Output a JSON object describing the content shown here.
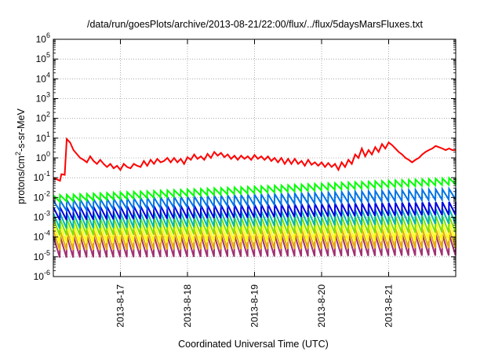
{
  "chart_data": {
    "type": "line",
    "title": "/data/run/goesPlots/archive/2013-08-21/22:00/flux/../flux/5daysMarsFluxes.txt",
    "xlabel": "Coordinated Universal Time (UTC)",
    "ylabel_parts": {
      "a": "protons/cm",
      "sup": "2",
      "b": "-s-sr-MeV"
    },
    "y_scale": "log",
    "ylim_exp": [
      -6,
      6
    ],
    "y_tick_exps": [
      -6,
      -5,
      -4,
      -3,
      -2,
      -1,
      0,
      1,
      2,
      3,
      4,
      5,
      6
    ],
    "y_tick_base": "10",
    "xlim_days": [
      0,
      6
    ],
    "x_ticks": [
      {
        "day": 1,
        "label": "2013-8-17"
      },
      {
        "day": 2,
        "label": "2013-8-18"
      },
      {
        "day": 3,
        "label": "2013-8-19"
      },
      {
        "day": 4,
        "label": "2013-8-20"
      },
      {
        "day": 5,
        "label": "2013-8-21"
      }
    ],
    "grid": true,
    "red_series": {
      "name": "",
      "color": "#ff0000",
      "x": [
        0.0,
        0.1,
        0.12,
        0.17,
        0.2,
        0.25,
        0.3,
        0.4,
        0.45,
        0.5,
        0.55,
        0.6,
        0.65,
        0.7,
        0.75,
        0.8,
        0.85,
        0.9,
        0.95,
        1.0,
        1.05,
        1.1,
        1.15,
        1.2,
        1.25,
        1.3,
        1.35,
        1.4,
        1.45,
        1.5,
        1.55,
        1.6,
        1.65,
        1.7,
        1.75,
        1.8,
        1.85,
        1.9,
        1.95,
        2.0,
        2.05,
        2.1,
        2.15,
        2.2,
        2.25,
        2.3,
        2.35,
        2.4,
        2.45,
        2.5,
        2.55,
        2.6,
        2.65,
        2.7,
        2.75,
        2.8,
        2.85,
        2.9,
        2.95,
        3.0,
        3.05,
        3.1,
        3.15,
        3.2,
        3.25,
        3.3,
        3.35,
        3.4,
        3.45,
        3.5,
        3.55,
        3.6,
        3.65,
        3.7,
        3.75,
        3.8,
        3.85,
        3.9,
        3.95,
        4.0,
        4.05,
        4.1,
        4.15,
        4.2,
        4.25,
        4.3,
        4.35,
        4.4,
        4.45,
        4.5,
        4.55,
        4.6,
        4.65,
        4.7,
        4.75,
        4.8,
        4.85,
        4.9,
        4.95,
        5.0,
        5.05,
        5.1,
        5.15,
        5.2,
        5.25,
        5.3,
        5.35,
        5.4,
        5.45,
        5.5,
        5.55,
        5.6,
        5.65,
        5.7,
        5.75,
        5.8,
        5.85,
        5.9,
        5.95,
        6.0
      ],
      "y": [
        0.1,
        0.07,
        0.15,
        0.14,
        9.0,
        6.0,
        2.5,
        1.0,
        0.8,
        0.6,
        1.2,
        0.7,
        0.5,
        0.8,
        0.5,
        0.35,
        0.5,
        0.3,
        0.4,
        0.25,
        0.5,
        0.35,
        0.3,
        0.5,
        0.4,
        0.35,
        0.7,
        0.4,
        0.8,
        0.5,
        0.9,
        0.6,
        0.7,
        1.0,
        0.6,
        1.0,
        0.6,
        0.9,
        0.5,
        1.1,
        0.8,
        1.5,
        0.9,
        1.2,
        0.8,
        1.6,
        1.0,
        2.0,
        1.3,
        1.8,
        1.1,
        1.5,
        0.9,
        1.3,
        0.8,
        1.3,
        0.9,
        1.2,
        0.8,
        1.4,
        0.9,
        1.2,
        0.8,
        1.2,
        0.7,
        1.0,
        0.6,
        1.0,
        0.5,
        0.9,
        0.5,
        0.9,
        0.5,
        0.7,
        0.4,
        0.8,
        0.45,
        0.6,
        0.4,
        0.6,
        0.35,
        0.55,
        0.35,
        0.5,
        0.25,
        0.6,
        0.35,
        0.8,
        0.5,
        1.5,
        1.0,
        3.0,
        1.2,
        2.5,
        1.5,
        3.5,
        2.0,
        5.0,
        3.0,
        6.0,
        4.5,
        3.0,
        2.0,
        1.5,
        1.0,
        0.8,
        0.6,
        0.8,
        1.0,
        1.5,
        2.0,
        2.5,
        3.0,
        4.0,
        3.5,
        3.0,
        2.5,
        3.0,
        2.5,
        2.5
      ]
    },
    "sawtooth_series": [
      {
        "name": "",
        "color": "#00ff00",
        "peak_start": 0.013,
        "peak_end": 0.1,
        "ratio": 2.2,
        "step": 0.1
      },
      {
        "name": "",
        "color": "#0073e6",
        "peak_start": 0.0072,
        "peak_end": 0.028,
        "ratio": 3.5,
        "step": 0.1
      },
      {
        "name": "",
        "color": "#0000e0",
        "peak_start": 0.0032,
        "peak_end": 0.006,
        "ratio": 4.5,
        "step": 0.1
      },
      {
        "name": "",
        "color": "#00b7b0",
        "peak_start": 0.0016,
        "peak_end": 0.0028,
        "ratio": 6.0,
        "step": 0.1
      },
      {
        "name": "",
        "color": "#7fe000",
        "peak_start": 0.00085,
        "peak_end": 0.0012,
        "ratio": 7.0,
        "step": 0.1
      },
      {
        "name": "",
        "color": "#ffff00",
        "peak_start": 0.00045,
        "peak_end": 0.0006,
        "ratio": 9.0,
        "step": 0.1
      },
      {
        "name": "",
        "color": "#e6aa00",
        "peak_start": 0.00022,
        "peak_end": 0.00028,
        "ratio": 10.0,
        "step": 0.1
      },
      {
        "name": "",
        "color": "#a03070",
        "peak_start": 0.00011,
        "peak_end": 0.00014,
        "ratio": 12.0,
        "step": 0.1
      }
    ]
  }
}
